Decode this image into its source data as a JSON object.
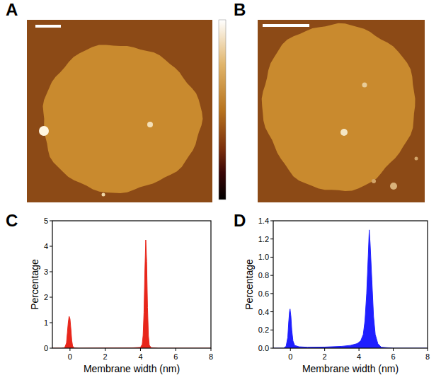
{
  "chart_data": [
    {
      "type": "image",
      "panel": "A"
    },
    {
      "type": "image",
      "panel": "B"
    },
    {
      "type": "area",
      "panel": "C",
      "x_label": "Membrane width (nm)",
      "y_label": "Percentage",
      "color": "#e8261b",
      "x": [
        -1,
        -0.5,
        -0.3,
        -0.2,
        -0.15,
        -0.1,
        -0.05,
        0,
        0.05,
        0.1,
        0.15,
        0.25,
        0.5,
        2,
        3.5,
        4.0,
        4.1,
        4.15,
        4.2,
        4.25,
        4.3,
        4.35,
        4.4,
        4.45,
        4.5,
        4.6,
        5,
        8
      ],
      "values": [
        0,
        0,
        0.02,
        0.2,
        0.6,
        1.0,
        1.25,
        1.15,
        0.75,
        0.3,
        0.08,
        0.01,
        0,
        0.005,
        0.01,
        0.03,
        0.15,
        0.5,
        1.4,
        3.0,
        4.25,
        3.4,
        1.6,
        0.5,
        0.12,
        0.02,
        0,
        0
      ],
      "xlim": [
        -1,
        8
      ],
      "xticks": [
        0,
        2,
        4,
        6,
        8
      ],
      "ylim": [
        0,
        5
      ],
      "yticks": [
        0,
        1,
        2,
        3,
        4,
        5
      ]
    },
    {
      "type": "area",
      "panel": "D",
      "x_label": "Membrane width (nm)",
      "y_label": "Percentage",
      "color": "#1f1fff",
      "x": [
        -1,
        -0.4,
        -0.25,
        -0.15,
        -0.1,
        -0.05,
        -0.02,
        0.03,
        0.08,
        0.15,
        0.25,
        0.5,
        1,
        2,
        3,
        3.5,
        3.9,
        4.1,
        4.25,
        4.35,
        4.45,
        4.55,
        4.6,
        4.65,
        4.75,
        4.85,
        4.95,
        5.1,
        5.3,
        6,
        8
      ],
      "values": [
        0,
        0,
        0.02,
        0.12,
        0.28,
        0.4,
        0.43,
        0.35,
        0.2,
        0.08,
        0.03,
        0.015,
        0.01,
        0.012,
        0.02,
        0.03,
        0.05,
        0.08,
        0.15,
        0.3,
        0.6,
        1.05,
        1.3,
        1.15,
        0.75,
        0.35,
        0.15,
        0.05,
        0.01,
        0,
        0
      ],
      "xlim": [
        -1,
        8
      ],
      "xticks": [
        0,
        2,
        4,
        6,
        8
      ],
      "ylim": [
        0,
        1.4
      ],
      "yticks": [
        {
          "value": 0,
          "label": "0.0"
        },
        0.2,
        0.4,
        0.6,
        0.8,
        {
          "value": 1,
          "label": "1.0"
        },
        1.2,
        1.4
      ]
    }
  ]
}
